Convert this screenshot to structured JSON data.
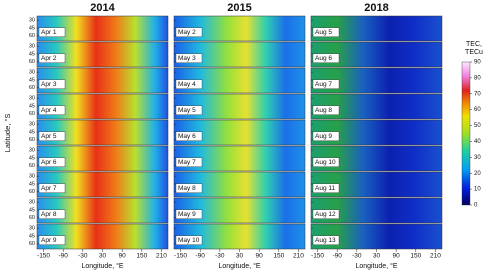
{
  "columns": [
    {
      "title": "2014",
      "dates": [
        "Apr 1",
        "Apr 2",
        "Apr 3",
        "Apr 4",
        "Apr 5",
        "Apr 6",
        "Apr 7",
        "Apr 8",
        "Apr 9"
      ]
    },
    {
      "title": "2015",
      "dates": [
        "May 2",
        "May 3",
        "May 4",
        "May 5",
        "May 6",
        "May 7",
        "May 8",
        "May 9",
        "May 10"
      ]
    },
    {
      "title": "2018",
      "dates": [
        "Aug 5",
        "Aug 6",
        "Aug 7",
        "Aug 8",
        "Aug 9",
        "Aug 10",
        "Aug 11",
        "Aug 12",
        "Aug 13"
      ]
    }
  ],
  "x_axis": {
    "label": "Longitude, °E",
    "ticks": [
      -150,
      -90,
      -30,
      30,
      90,
      150,
      210
    ],
    "lim": [
      -170,
      230
    ]
  },
  "y_axis": {
    "label": "Latitude, °S",
    "ticks": [
      30,
      45,
      60
    ],
    "lim": [
      22,
      70
    ]
  },
  "colorbar": {
    "label": [
      "TEC,",
      "TECu"
    ],
    "ticks": [
      0,
      10,
      20,
      30,
      40,
      50,
      60,
      70,
      80,
      90
    ],
    "lim": [
      0,
      90
    ]
  }
}
